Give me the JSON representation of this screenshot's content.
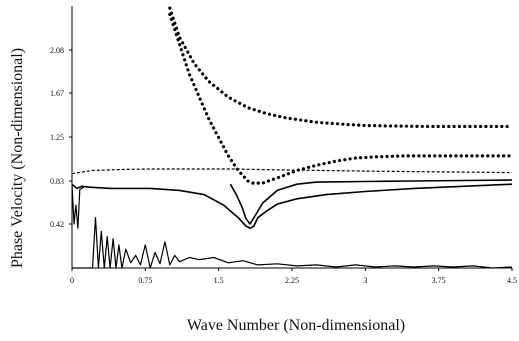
{
  "chart_data": {
    "type": "line",
    "title": "",
    "xlabel": "Wave Number (Non-dimensional)",
    "ylabel": "Phase Velocity (Non-dimensional)",
    "xlim": [
      0,
      4.5
    ],
    "ylim": [
      0,
      2.5
    ],
    "grid": false,
    "legend": "none",
    "x_ticks": [
      0,
      0.75,
      1.5,
      2.25,
      3,
      3.75,
      4.5
    ],
    "x_tick_labels": [
      "0",
      "0.75",
      "1.5",
      "2.25",
      "3",
      "3.75",
      "4.5"
    ],
    "y_ticks": [
      0.42,
      0.83,
      1.25,
      1.67,
      2.08
    ],
    "y_tick_labels": [
      "0.42",
      "0.83",
      "1.25",
      "1.67",
      "2.08"
    ],
    "series": [
      {
        "style": "dotted-heavy",
        "x": [
          1.0,
          1.1,
          1.25,
          1.4,
          1.6,
          1.8,
          2.0,
          2.2,
          2.5,
          2.8,
          3.0,
          3.3,
          3.6,
          3.9,
          4.2,
          4.5
        ],
        "y": [
          2.48,
          2.2,
          1.95,
          1.78,
          1.63,
          1.53,
          1.47,
          1.43,
          1.39,
          1.37,
          1.36,
          1.355,
          1.35,
          1.35,
          1.35,
          1.35
        ]
      },
      {
        "style": "dotted-heavy",
        "x": [
          1.0,
          1.2,
          1.4,
          1.6,
          1.7,
          1.8,
          1.85,
          1.95,
          2.1,
          2.3,
          2.5,
          2.7,
          2.9,
          3.1,
          3.4,
          3.7,
          4.0,
          4.3,
          4.5
        ],
        "y": [
          2.42,
          1.85,
          1.42,
          1.07,
          0.93,
          0.83,
          0.81,
          0.81,
          0.86,
          0.93,
          0.98,
          1.02,
          1.05,
          1.06,
          1.07,
          1.07,
          1.07,
          1.07,
          1.07
        ]
      },
      {
        "style": "dashed-light",
        "x": [
          0.0,
          0.2,
          0.5,
          0.8,
          1.1,
          1.4,
          1.7,
          1.9,
          2.2,
          2.6,
          3.0,
          3.5,
          4.0,
          4.5
        ],
        "y": [
          0.9,
          0.93,
          0.94,
          0.945,
          0.945,
          0.945,
          0.945,
          0.94,
          0.935,
          0.93,
          0.925,
          0.92,
          0.915,
          0.91
        ]
      },
      {
        "style": "solid",
        "x": [
          0.0,
          0.05,
          0.1,
          0.2,
          0.4,
          0.8,
          1.1,
          1.35,
          1.55,
          1.7,
          1.78,
          1.82,
          1.86,
          1.9,
          2.0,
          2.1,
          2.3,
          2.6,
          3.0,
          3.5,
          4.0,
          4.5
        ],
        "y": [
          0.8,
          0.76,
          0.78,
          0.77,
          0.76,
          0.76,
          0.74,
          0.7,
          0.6,
          0.48,
          0.4,
          0.38,
          0.4,
          0.48,
          0.55,
          0.61,
          0.66,
          0.7,
          0.73,
          0.76,
          0.78,
          0.8
        ]
      },
      {
        "style": "solid",
        "x": [
          1.62,
          1.68,
          1.74,
          1.78,
          1.82,
          1.86,
          1.95,
          2.1,
          2.3,
          2.5,
          3.0,
          3.5,
          4.0,
          4.5
        ],
        "y": [
          0.8,
          0.7,
          0.58,
          0.47,
          0.42,
          0.48,
          0.62,
          0.74,
          0.8,
          0.82,
          0.825,
          0.83,
          0.835,
          0.84
        ]
      },
      {
        "style": "solid-thin",
        "x": [
          0.0,
          0.03,
          0.06,
          0.09,
          0.12,
          0.15,
          0.18,
          0.21,
          0.24,
          0.27,
          0.3,
          0.33,
          0.36,
          0.39,
          0.42,
          0.45,
          0.48,
          0.51,
          0.55,
          0.6,
          0.65,
          0.7,
          0.75,
          0.8,
          0.85,
          0.9,
          0.95,
          1.0,
          1.05,
          1.1,
          1.2,
          1.3,
          1.45,
          1.6,
          1.75,
          1.9,
          2.1,
          2.3,
          2.5,
          2.7,
          2.9,
          3.1,
          3.3,
          3.5,
          3.7,
          3.9,
          4.1,
          4.3,
          4.5
        ],
        "y": [
          0.0,
          0.0,
          0.0,
          0.0,
          0.0,
          0.0,
          0.0,
          0.0,
          0.48,
          0.0,
          0.35,
          0.0,
          0.3,
          0.0,
          0.28,
          0.0,
          0.22,
          0.0,
          0.18,
          0.05,
          0.12,
          0.03,
          0.22,
          0.0,
          0.15,
          0.04,
          0.25,
          0.03,
          0.12,
          0.06,
          0.1,
          0.08,
          0.1,
          0.05,
          0.07,
          0.03,
          0.04,
          0.02,
          0.03,
          0.01,
          0.03,
          0.01,
          0.02,
          0.01,
          0.02,
          0.01,
          0.02,
          0.0,
          0.01
        ]
      },
      {
        "style": "solid-thin",
        "x": [
          0.0,
          0.02,
          0.04,
          0.06,
          0.08,
          0.1,
          0.12
        ],
        "y": [
          0.8,
          0.42,
          0.6,
          0.38,
          0.75,
          0.76,
          0.77
        ]
      }
    ]
  }
}
